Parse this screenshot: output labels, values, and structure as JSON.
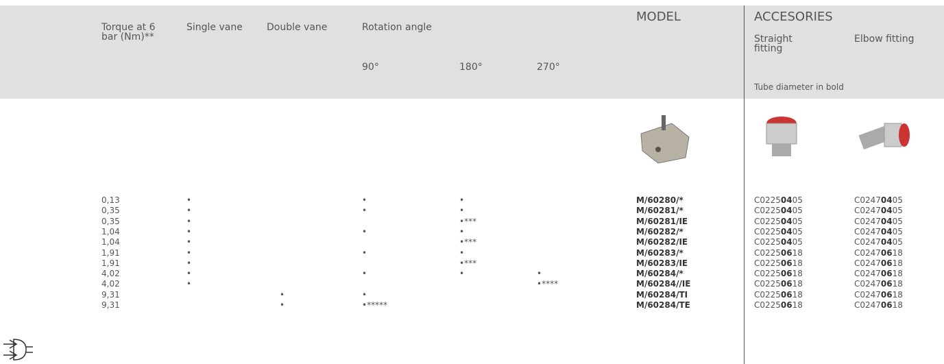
{
  "header": {
    "torque": "Torque at 6 bar (Nm)**",
    "single": "Single vane",
    "double": "Double vane",
    "rotation": "Rotation angle",
    "a90": "90°",
    "a180": "180°",
    "a270": "270°",
    "model": "MODEL",
    "accessories": "ACCESORIES",
    "straight": "Straight fitting",
    "elbow": "Elbow fitting",
    "tube_note": "Tube diameter in bold"
  },
  "rows": [
    {
      "torque": "0,13",
      "single": "•",
      "a90": "•",
      "a180": "•",
      "model": "M/60280/*",
      "straight": {
        "pre": "C0225",
        "bold": "04",
        "post": "05"
      },
      "elbow": {
        "pre": "C0247",
        "bold": "04",
        "post": "05"
      }
    },
    {
      "torque": "0,35",
      "single": "•",
      "a90": "•",
      "a180": "•",
      "model": "M/60281/*",
      "straight": {
        "pre": "C0225",
        "bold": "04",
        "post": "05"
      },
      "elbow": {
        "pre": "C0247",
        "bold": "04",
        "post": "05"
      }
    },
    {
      "torque": "0,35",
      "single": "•",
      "a180": "•***",
      "model": "M/60281/IE",
      "straight": {
        "pre": "C0225",
        "bold": "04",
        "post": "05"
      },
      "elbow": {
        "pre": "C0247",
        "bold": "04",
        "post": "05"
      }
    },
    {
      "torque": "1,04",
      "single": "•",
      "a90": "•",
      "a180": "•",
      "model": "M/60282/*",
      "straight": {
        "pre": "C0225",
        "bold": "04",
        "post": "05"
      },
      "elbow": {
        "pre": "C0247",
        "bold": "04",
        "post": "05"
      }
    },
    {
      "torque": "1,04",
      "single": "•",
      "a180": "•***",
      "model": "M/60282/IE",
      "straight": {
        "pre": "C0225",
        "bold": "04",
        "post": "05"
      },
      "elbow": {
        "pre": "C0247",
        "bold": "04",
        "post": "05"
      }
    },
    {
      "torque": "1,91",
      "single": "•",
      "a90": "•",
      "a180": "•",
      "model": "M/60283/*",
      "straight": {
        "pre": "C0225",
        "bold": "06",
        "post": "18"
      },
      "elbow": {
        "pre": "C0247",
        "bold": "06",
        "post": "18"
      }
    },
    {
      "torque": "1,91",
      "single": "•",
      "a180": "•***",
      "model": "M/60283/IE",
      "straight": {
        "pre": "C0225",
        "bold": "06",
        "post": "18"
      },
      "elbow": {
        "pre": "C0247",
        "bold": "06",
        "post": "18"
      }
    },
    {
      "torque": "4,02",
      "single": "•",
      "a90": "•",
      "a180": "•",
      "a270": "•",
      "model": "M/60284/*",
      "straight": {
        "pre": "C0225",
        "bold": "06",
        "post": "18"
      },
      "elbow": {
        "pre": "C0247",
        "bold": "06",
        "post": "18"
      }
    },
    {
      "torque": "4,02",
      "single": "•",
      "a270": "•****",
      "model": "M/60284//IE",
      "straight": {
        "pre": "C0225",
        "bold": "06",
        "post": "18"
      },
      "elbow": {
        "pre": "C0247",
        "bold": "06",
        "post": "18"
      }
    },
    {
      "torque": "9,31",
      "double": "•",
      "a90": "•",
      "model": "M/60284/TI",
      "straight": {
        "pre": "C0225",
        "bold": "06",
        "post": "18"
      },
      "elbow": {
        "pre": "C0247",
        "bold": "06",
        "post": "18"
      }
    },
    {
      "torque": "9,31",
      "double": "•",
      "a90": "•*****",
      "model": "M/60284/TE",
      "straight": {
        "pre": "C0225",
        "bold": "06",
        "post": "18"
      },
      "elbow": {
        "pre": "C0247",
        "bold": "06",
        "post": "18"
      }
    }
  ]
}
